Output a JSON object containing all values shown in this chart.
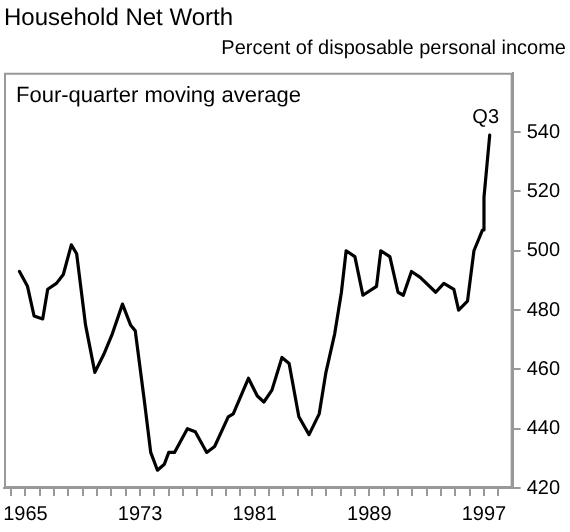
{
  "chart_data": {
    "type": "line",
    "title": "Household Net Worth",
    "subtitle": "Percent of disposable personal income",
    "annotations": [
      "Four-quarter moving average",
      {
        "text": "Q3",
        "x": 1997.4,
        "y": 539
      }
    ],
    "x": [
      1964.58,
      1965.14,
      1965.6,
      1966.2,
      1966.55,
      1967.16,
      1967.64,
      1968.2,
      1968.57,
      1969.19,
      1969.84,
      1970.46,
      1971.06,
      1971.77,
      1972.33,
      1972.66,
      1973.28,
      1973.74,
      1974.21,
      1974.69,
      1975.0,
      1975.4,
      1976.3,
      1976.85,
      1977.65,
      1978.2,
      1979.15,
      1979.5,
      1980.56,
      1981.18,
      1981.64,
      1982.2,
      1982.9,
      1983.4,
      1984.08,
      1984.79,
      1985.5,
      1985.97,
      1986.58,
      1987.05,
      1987.38,
      1987.99,
      1988.55,
      1989.5,
      1989.8,
      1990.43,
      1991.0,
      1991.37,
      1991.94,
      1992.55,
      1993.63,
      1994.2,
      1994.9,
      1995.23,
      1995.85,
      1996.3,
      1996.9,
      1997.0,
      1997.4
    ],
    "series": [
      {
        "color": "#000000",
        "values": [
          493,
          488,
          478,
          477,
          487,
          489,
          492,
          502,
          499,
          475,
          459,
          465,
          472,
          482,
          475,
          473,
          450,
          432,
          426,
          428,
          432,
          432,
          440,
          439,
          432,
          434,
          444,
          445,
          457,
          451,
          449,
          453,
          464,
          462,
          444,
          438,
          445,
          459,
          472,
          486,
          500,
          498,
          485,
          488,
          500,
          498,
          486,
          485,
          493,
          491,
          486,
          489,
          487,
          480,
          483,
          500,
          507,
          518,
          539
        ]
      }
    ],
    "xlim": [
      1963.5,
      1999
    ],
    "xticks": [
      {
        "value": 1964,
        "label": null
      },
      {
        "value": 1965,
        "label": "1965"
      },
      {
        "value": 1966,
        "label": null
      },
      {
        "value": 1967,
        "label": null
      },
      {
        "value": 1968,
        "label": null
      },
      {
        "value": 1969,
        "label": null
      },
      {
        "value": 1970,
        "label": null
      },
      {
        "value": 1971,
        "label": null
      },
      {
        "value": 1972,
        "label": null
      },
      {
        "value": 1973,
        "label": "1973"
      },
      {
        "value": 1974,
        "label": null
      },
      {
        "value": 1975,
        "label": null
      },
      {
        "value": 1976,
        "label": null
      },
      {
        "value": 1977,
        "label": null
      },
      {
        "value": 1978,
        "label": null
      },
      {
        "value": 1979,
        "label": null
      },
      {
        "value": 1980,
        "label": null
      },
      {
        "value": 1981,
        "label": "1981"
      },
      {
        "value": 1982,
        "label": null
      },
      {
        "value": 1983,
        "label": null
      },
      {
        "value": 1984,
        "label": null
      },
      {
        "value": 1985,
        "label": null
      },
      {
        "value": 1986,
        "label": null
      },
      {
        "value": 1987,
        "label": null
      },
      {
        "value": 1988,
        "label": null
      },
      {
        "value": 1989,
        "label": "1989"
      },
      {
        "value": 1990,
        "label": null
      },
      {
        "value": 1991,
        "label": null
      },
      {
        "value": 1992,
        "label": null
      },
      {
        "value": 1993,
        "label": null
      },
      {
        "value": 1994,
        "label": null
      },
      {
        "value": 1995,
        "label": null
      },
      {
        "value": 1996,
        "label": null
      },
      {
        "value": 1997,
        "label": "1997"
      },
      {
        "value": 1998,
        "label": null
      }
    ],
    "ylim": [
      420,
      560
    ],
    "yticks": [
      420,
      440,
      460,
      480,
      500,
      520,
      540
    ],
    "grid": false,
    "legend": false,
    "marker": "none",
    "line_style": "solid"
  }
}
